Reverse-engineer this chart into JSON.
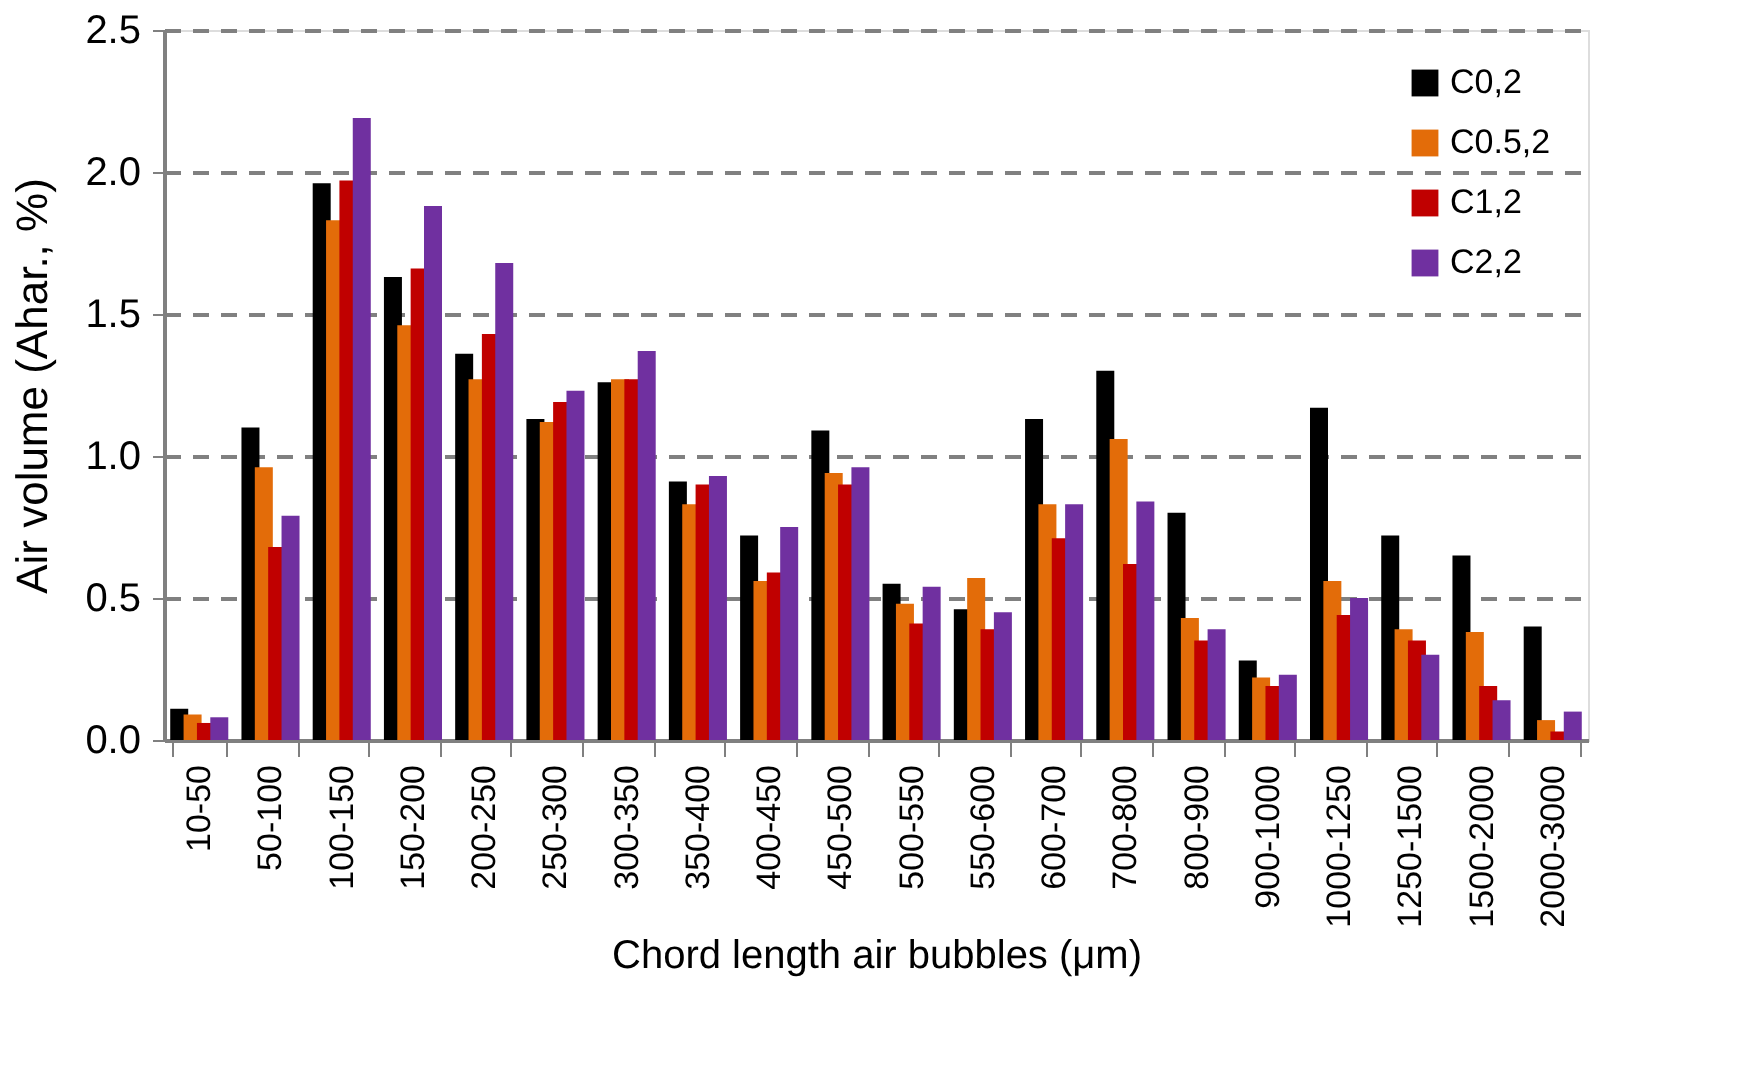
{
  "chart_data": {
    "type": "bar",
    "xlabel": "Chord length air bubbles (μm)",
    "ylabel": "Air volume (Ahar., %)",
    "categories": [
      "10-50",
      "50-100",
      "100-150",
      "150-200",
      "200-250",
      "250-300",
      "300-350",
      "350-400",
      "400-450",
      "450-500",
      "500-550",
      "550-600",
      "600-700",
      "700-800",
      "800-900",
      "900-1000",
      "1000-1250",
      "1250-1500",
      "1500-2000",
      "2000-3000"
    ],
    "series": [
      {
        "name": "C0,2",
        "color": "#000000",
        "values": [
          0.11,
          1.1,
          1.96,
          1.63,
          1.36,
          1.13,
          1.26,
          0.91,
          0.72,
          1.09,
          0.55,
          0.46,
          1.13,
          1.3,
          0.8,
          0.28,
          1.17,
          0.72,
          0.65,
          0.4
        ]
      },
      {
        "name": "C0.5,2",
        "color": "#e36c09",
        "values": [
          0.09,
          0.96,
          1.83,
          1.46,
          1.27,
          1.12,
          1.27,
          0.83,
          0.56,
          0.94,
          0.48,
          0.57,
          0.83,
          1.06,
          0.43,
          0.22,
          0.56,
          0.39,
          0.38,
          0.07
        ]
      },
      {
        "name": "C1,2",
        "color": "#c00000",
        "values": [
          0.06,
          0.68,
          1.97,
          1.66,
          1.43,
          1.19,
          1.27,
          0.9,
          0.59,
          0.9,
          0.41,
          0.39,
          0.71,
          0.62,
          0.35,
          0.19,
          0.44,
          0.35,
          0.19,
          0.03
        ]
      },
      {
        "name": "C2,2",
        "color": "#7030a0",
        "values": [
          0.08,
          0.79,
          2.19,
          1.88,
          1.68,
          1.23,
          1.37,
          0.93,
          0.75,
          0.96,
          0.54,
          0.45,
          0.83,
          0.84,
          0.39,
          0.23,
          0.5,
          0.3,
          0.14,
          0.1
        ]
      }
    ],
    "ylim": [
      0,
      2.5
    ],
    "yticks": [
      {
        "value": 0,
        "label": "0.0"
      },
      {
        "value": 0.5,
        "label": "0.5"
      },
      {
        "value": 1,
        "label": "1.0"
      },
      {
        "value": 1.5,
        "label": "1.5"
      },
      {
        "value": 2,
        "label": "2.0"
      },
      {
        "value": 2.5,
        "label": "2.5"
      }
    ],
    "grid": "y",
    "legend": "top right"
  }
}
